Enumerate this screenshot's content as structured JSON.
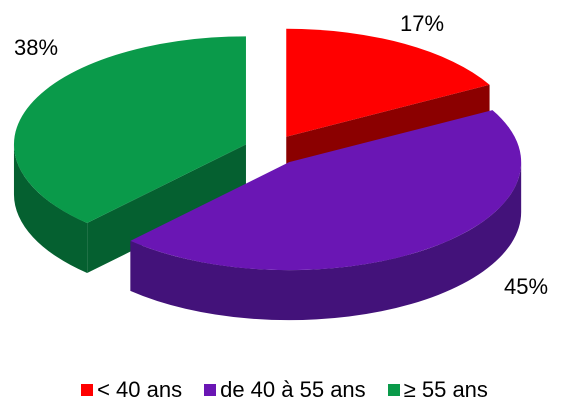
{
  "chart_data": {
    "type": "pie",
    "style": "3d-exploded",
    "legend_position": "bottom",
    "slices": [
      {
        "label": "< 40 ans",
        "value": 17,
        "display": "17%",
        "color": "#ff0000",
        "side_color": "#8b0000"
      },
      {
        "label": "de 40 à 55 ans",
        "value": 45,
        "display": "45%",
        "color": "#6a16b4",
        "side_color": "#43127a"
      },
      {
        "label": "≥ 55 ans",
        "value": 38,
        "display": "38%",
        "color": "#0a9a4a",
        "side_color": "#056030"
      }
    ]
  }
}
